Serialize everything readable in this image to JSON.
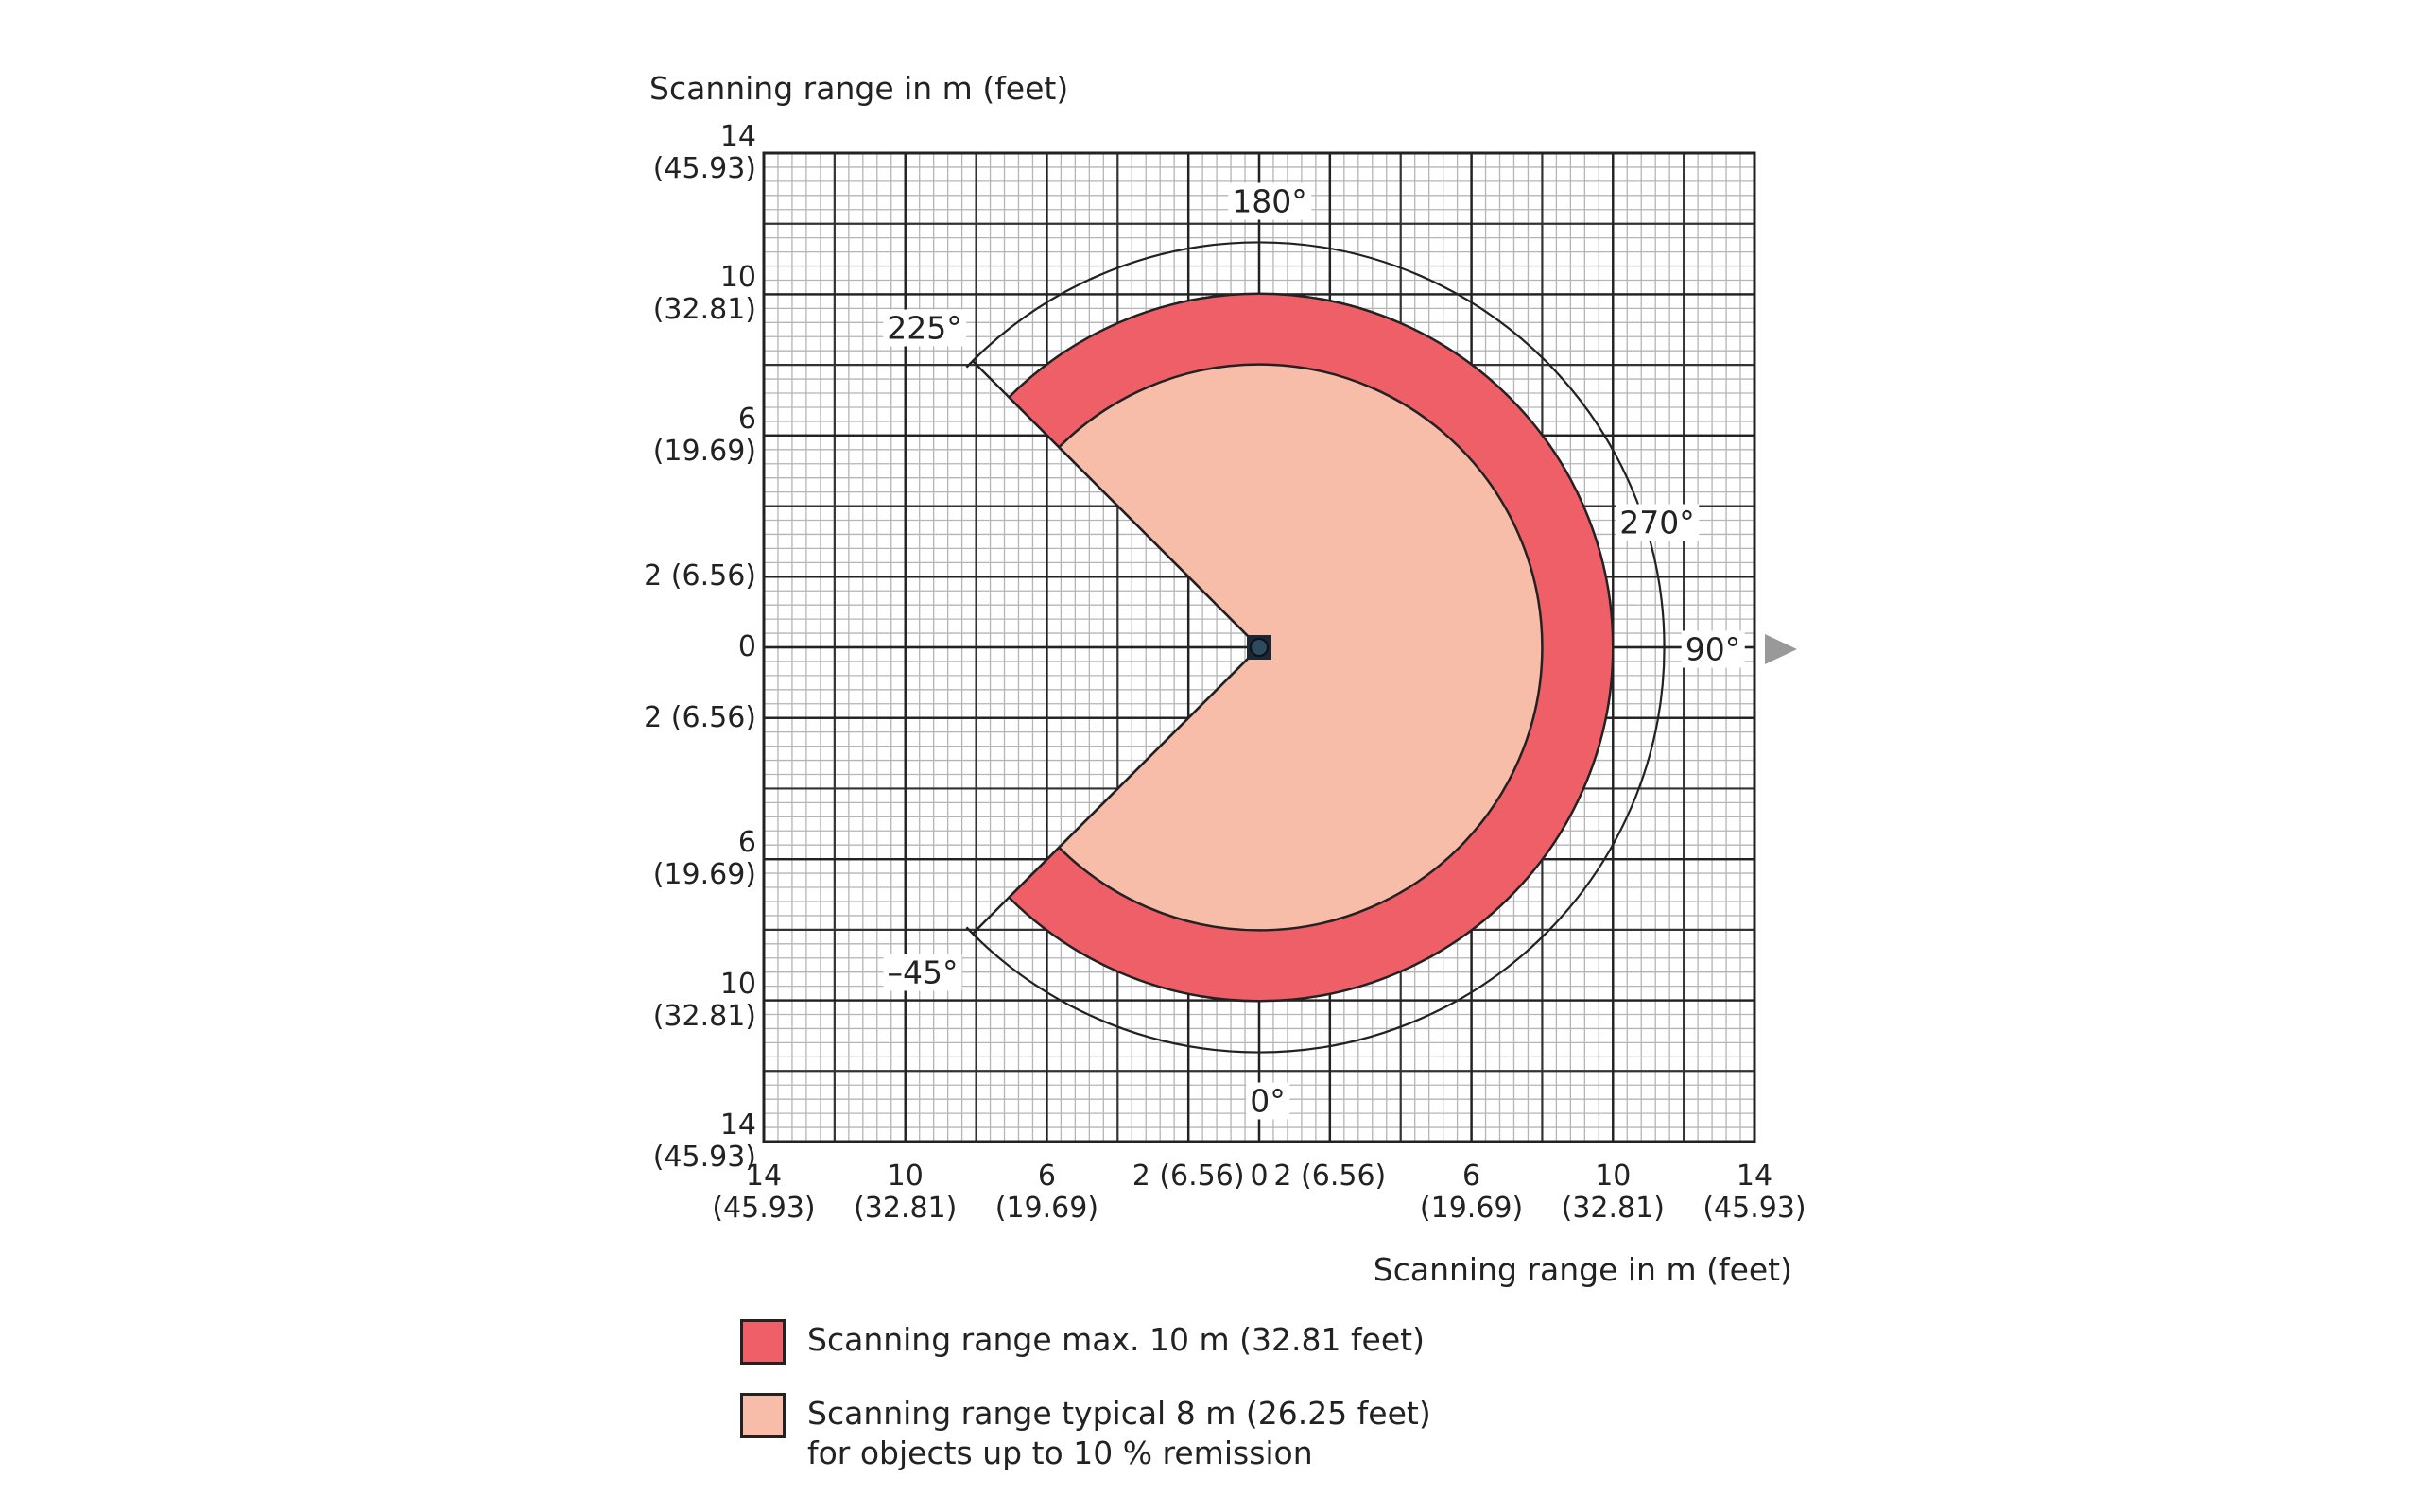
{
  "chart_data": {
    "type": "range-sector",
    "x_label": "Scanning range in m (feet)",
    "y_label": "Scanning range in m (feet)",
    "xlim": [
      -14,
      14
    ],
    "ylim": [
      -14,
      14
    ],
    "xticks": [
      {
        "value": -14,
        "label": "14 (45.93)"
      },
      {
        "value": -10,
        "label": "10 (32.81)"
      },
      {
        "value": -6,
        "label": "6 (19.69)"
      },
      {
        "value": -2,
        "label": "2 (6.56)"
      },
      0,
      {
        "value": 2,
        "label": "2 (6.56)"
      },
      {
        "value": 6,
        "label": "6 (19.69)"
      },
      {
        "value": 10,
        "label": "10 (32.81)"
      },
      {
        "value": 14,
        "label": "14 (45.93)"
      }
    ],
    "yticks": [
      {
        "value": 14,
        "label": "14 (45.93)"
      },
      {
        "value": 10,
        "label": "10 (32.81)"
      },
      {
        "value": 6,
        "label": "6 (19.69)"
      },
      {
        "value": 2,
        "label": "2 (6.56)"
      },
      0,
      {
        "value": -2,
        "label": "2 (6.56)"
      },
      {
        "value": -6,
        "label": "6 (19.69)"
      },
      {
        "value": -10,
        "label": "10 (32.81)"
      },
      {
        "value": -14,
        "label": "14 (45.93)"
      }
    ],
    "grid": true,
    "angle_range": [
      -45,
      225
    ],
    "series": [
      {
        "name": "Scanning range max. 10 m (32.81 feet)",
        "color": "#ef5f67",
        "radius": 10
      },
      {
        "name": "Scanning range typical 8 m (26.25 feet) for objects up to 10 % remission",
        "color": "#f8bda9",
        "radius": 8
      }
    ],
    "annotations": [
      "180°",
      "225°",
      "270°",
      "90°",
      "–45°",
      "0°"
    ]
  }
}
